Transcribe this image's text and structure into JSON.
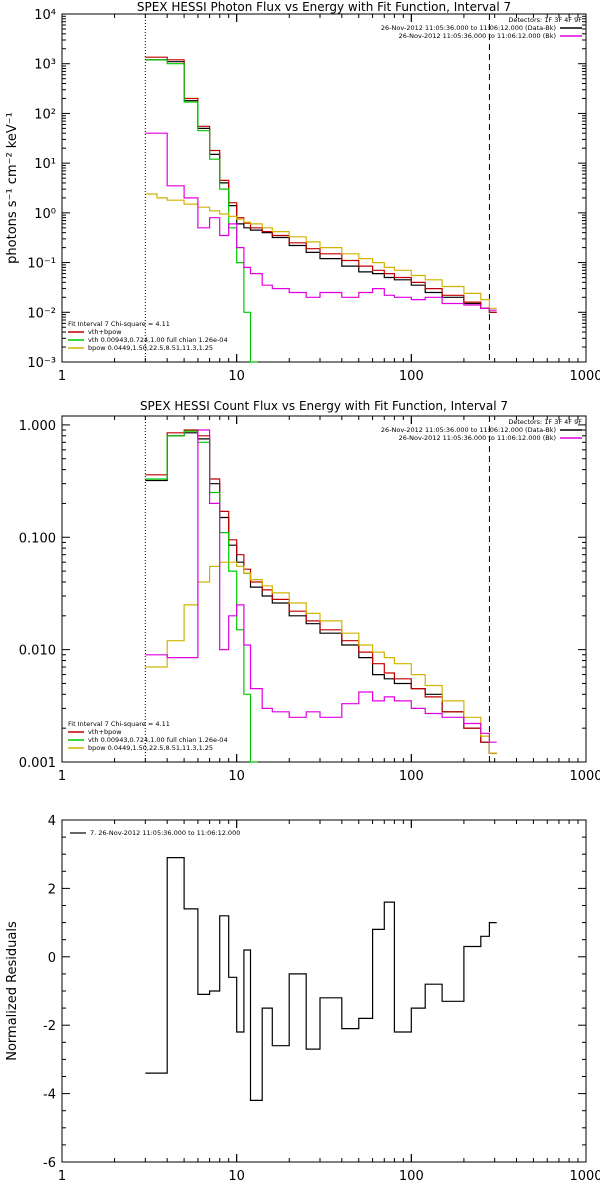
{
  "colors": {
    "data": "#000000",
    "vth": "#00c800",
    "bpow": "#d0b400",
    "total": "#c00000",
    "bkg": "#e000e0"
  },
  "chart_data": [
    {
      "type": "line",
      "title": "SPEX HESSI Photon Flux vs Energy with Fit Function, Interval 7",
      "ylabel": "photons s⁻¹ cm⁻² keV⁻¹",
      "xscale": "log",
      "yscale": "log",
      "xlim": [
        1,
        1000
      ],
      "ylim": [
        0.001,
        10000
      ],
      "xticklabels": [
        "1",
        "10",
        "100",
        "1000"
      ],
      "yticklabels": [
        "10⁻³",
        "10⁻²",
        "10⁻¹",
        "10⁰",
        "10¹",
        "10²",
        "10³",
        "10⁴"
      ],
      "fit_range_keV": [
        3,
        280
      ],
      "detectors_header": "Detectors: 1F 3F 4F 9F",
      "detectors": [
        {
          "text": "26-Nov-2012 11:05:36.000 to 11:06:12.000 (Data-Bk)",
          "color": "#000000"
        },
        {
          "text": "26-Nov-2012 11:05:36.000 to 11:06:12.000 (Bk)",
          "color": "#e000e0"
        }
      ],
      "fit_header": "Fit Interval 7   Chi-square = 4.11",
      "fit_legend": [
        {
          "text": "vth+bpow",
          "color": "#c00000"
        },
        {
          "text": "vth 0.00943,0.724,1.00   full chian 1.26e-04",
          "color": "#00c800"
        },
        {
          "text": "bpow 0.0449,1.50,22.5,8.51,11.3,1.25",
          "color": "#d0b400"
        }
      ],
      "series": [
        {
          "name": "Data-Bk",
          "color": "#000000",
          "x": [
            3,
            3.5,
            4,
            5,
            6,
            7,
            8,
            9,
            10,
            11,
            12,
            14,
            16,
            20,
            25,
            30,
            40,
            50,
            60,
            70,
            80,
            100,
            120,
            150,
            200,
            250,
            280
          ],
          "y": [
            1200,
            1200,
            1100,
            180,
            50,
            15,
            4,
            1.4,
            0.6,
            0.5,
            0.45,
            0.4,
            0.32,
            0.22,
            0.16,
            0.12,
            0.085,
            0.065,
            0.06,
            0.05,
            0.045,
            0.035,
            0.025,
            0.02,
            0.015,
            0.012,
            0.01
          ]
        },
        {
          "name": "vth+bpow",
          "color": "#c00000",
          "x": [
            3,
            3.5,
            4,
            5,
            6,
            7,
            8,
            9,
            10,
            11,
            12,
            14,
            16,
            20,
            25,
            30,
            40,
            50,
            60,
            70,
            80,
            100,
            120,
            150,
            200,
            250,
            280
          ],
          "y": [
            1350,
            1350,
            1200,
            200,
            55,
            18,
            4.5,
            1.6,
            0.8,
            0.62,
            0.5,
            0.42,
            0.35,
            0.25,
            0.19,
            0.15,
            0.11,
            0.085,
            0.07,
            0.06,
            0.05,
            0.04,
            0.03,
            0.022,
            0.016,
            0.012,
            0.01
          ]
        },
        {
          "name": "vth",
          "color": "#00c800",
          "x": [
            3,
            3.5,
            4,
            5,
            6,
            7,
            8,
            9,
            10,
            11,
            12
          ],
          "y": [
            1200,
            1200,
            1000,
            170,
            45,
            12,
            3,
            0.5,
            0.1,
            0.01,
            0.001
          ]
        },
        {
          "name": "bpow",
          "color": "#d0b400",
          "x": [
            3,
            3.5,
            4,
            5,
            6,
            7,
            8,
            9,
            10,
            11,
            12,
            14,
            16,
            20,
            25,
            30,
            40,
            50,
            60,
            70,
            80,
            100,
            120,
            150,
            200,
            250,
            280
          ],
          "y": [
            2.4,
            2.0,
            1.8,
            1.5,
            1.3,
            1.1,
            0.95,
            0.85,
            0.75,
            0.65,
            0.6,
            0.5,
            0.42,
            0.33,
            0.26,
            0.2,
            0.15,
            0.12,
            0.1,
            0.08,
            0.07,
            0.055,
            0.045,
            0.033,
            0.024,
            0.018,
            0.012
          ]
        },
        {
          "name": "Bk",
          "color": "#e000e0",
          "x": [
            3,
            3.5,
            4,
            5,
            6,
            7,
            8,
            9,
            10,
            11,
            12,
            14,
            16,
            20,
            25,
            30,
            40,
            50,
            60,
            70,
            80,
            100,
            120,
            150,
            200,
            250,
            280
          ],
          "y": [
            40,
            40,
            3.5,
            2,
            0.5,
            0.8,
            0.35,
            0.6,
            0.2,
            0.08,
            0.06,
            0.035,
            0.03,
            0.025,
            0.02,
            0.025,
            0.02,
            0.025,
            0.03,
            0.022,
            0.02,
            0.018,
            0.02,
            0.015,
            0.014,
            0.012,
            0.011
          ]
        }
      ]
    },
    {
      "type": "line",
      "title": "SPEX HESSI Count Flux vs Energy with Fit Function, Interval 7",
      "xscale": "log",
      "yscale": "log",
      "xlim": [
        1,
        1000
      ],
      "ylim": [
        0.001,
        1.2
      ],
      "xticklabels": [
        "1",
        "10",
        "100",
        "1000"
      ],
      "yticklabels": [
        "0.001",
        "0.010",
        "0.100",
        "1.000"
      ],
      "fit_range_keV": [
        3,
        280
      ],
      "detectors_header": "Detectors: 1F 3F 4F 9F",
      "detectors": [
        {
          "text": "26-Nov-2012 11:05:36.000 to 11:06:12.000 (Data-Bk)",
          "color": "#000000"
        },
        {
          "text": "26-Nov-2012 11:05:36.000 to 11:06:12.000 (Bk)",
          "color": "#e000e0"
        }
      ],
      "fit_header": "Fit Interval 7   Chi-square = 4.11",
      "fit_legend": [
        {
          "text": "vth+bpow",
          "color": "#c00000"
        },
        {
          "text": "vth 0.00943,0.724,1.00   full chian 1.26e-04",
          "color": "#00c800"
        },
        {
          "text": "bpow 0.0449,1.50,22.5,8.51,11.3,1.25",
          "color": "#d0b400"
        }
      ],
      "series": [
        {
          "name": "Data-Bk",
          "color": "#000000",
          "x": [
            3,
            3.5,
            4,
            5,
            6,
            7,
            8,
            9,
            10,
            11,
            12,
            14,
            16,
            20,
            25,
            30,
            40,
            50,
            60,
            70,
            80,
            100,
            120,
            150,
            200,
            250,
            280
          ],
          "y": [
            0.32,
            0.32,
            0.8,
            0.85,
            0.75,
            0.3,
            0.15,
            0.085,
            0.06,
            0.048,
            0.036,
            0.03,
            0.026,
            0.02,
            0.017,
            0.014,
            0.011,
            0.0085,
            0.006,
            0.0055,
            0.005,
            0.0045,
            0.004,
            0.0028,
            0.002,
            0.0015,
            0.0012
          ]
        },
        {
          "name": "vth+bpow",
          "color": "#c00000",
          "x": [
            3,
            3.5,
            4,
            5,
            6,
            7,
            8,
            9,
            10,
            11,
            12,
            14,
            16,
            20,
            25,
            30,
            40,
            50,
            60,
            70,
            80,
            100,
            120,
            150,
            200,
            250,
            280
          ],
          "y": [
            0.36,
            0.36,
            0.85,
            0.9,
            0.8,
            0.33,
            0.17,
            0.095,
            0.07,
            0.052,
            0.04,
            0.034,
            0.028,
            0.022,
            0.018,
            0.015,
            0.012,
            0.0095,
            0.0075,
            0.0062,
            0.0055,
            0.0045,
            0.0038,
            0.0028,
            0.002,
            0.0015,
            0.0012
          ]
        },
        {
          "name": "vth",
          "color": "#00c800",
          "x": [
            3,
            3.5,
            4,
            5,
            6,
            7,
            8,
            9,
            10,
            11,
            12
          ],
          "y": [
            0.33,
            0.33,
            0.8,
            0.88,
            0.7,
            0.25,
            0.11,
            0.05,
            0.015,
            0.004,
            0.001
          ]
        },
        {
          "name": "bpow",
          "color": "#d0b400",
          "x": [
            3,
            3.5,
            4,
            5,
            6,
            7,
            8,
            9,
            10,
            11,
            12,
            14,
            16,
            20,
            25,
            30,
            40,
            50,
            60,
            70,
            80,
            100,
            120,
            150,
            200,
            250,
            280
          ],
          "y": [
            0.007,
            0.007,
            0.012,
            0.025,
            0.04,
            0.055,
            0.06,
            0.06,
            0.055,
            0.048,
            0.042,
            0.037,
            0.032,
            0.026,
            0.021,
            0.018,
            0.014,
            0.011,
            0.0095,
            0.0085,
            0.0075,
            0.006,
            0.0048,
            0.0035,
            0.0025,
            0.0017,
            0.0012
          ]
        },
        {
          "name": "Bk",
          "color": "#e000e0",
          "x": [
            3,
            3.5,
            4,
            5,
            6,
            7,
            8,
            9,
            10,
            11,
            12,
            14,
            16,
            20,
            25,
            30,
            40,
            50,
            60,
            70,
            80,
            100,
            120,
            150,
            200,
            250,
            280
          ],
          "y": [
            0.009,
            0.009,
            0.0085,
            0.0085,
            0.9,
            0.2,
            0.01,
            0.02,
            0.025,
            0.011,
            0.0045,
            0.003,
            0.0028,
            0.0025,
            0.0028,
            0.0025,
            0.0033,
            0.0042,
            0.0035,
            0.0038,
            0.0035,
            0.003,
            0.0027,
            0.0025,
            0.0022,
            0.0018,
            0.0015
          ]
        }
      ]
    },
    {
      "type": "line",
      "ylabel": "Normalized Residuals",
      "xscale": "log",
      "yscale": "linear",
      "xlim": [
        1,
        1000
      ],
      "ylim": [
        -6,
        4
      ],
      "xticklabels": [
        "1",
        "10",
        "100",
        "1000"
      ],
      "yticklabels": [
        "4",
        "2",
        "0",
        "-2",
        "-4",
        "-6"
      ],
      "legend": [
        {
          "text": "7. 26-Nov-2012 11:05:36.000 to 11:06:12.000",
          "color": "#000000"
        }
      ],
      "series": [
        {
          "name": "7. 26-Nov-2012 11:05:36.000 to 11:06:12.000",
          "color": "#000000",
          "x": [
            3,
            3.5,
            4,
            5,
            6,
            7,
            8,
            9,
            10,
            11,
            12,
            14,
            16,
            20,
            25,
            30,
            40,
            50,
            60,
            70,
            80,
            100,
            120,
            150,
            200,
            250,
            280
          ],
          "y": [
            -3.4,
            -3.4,
            2.9,
            1.4,
            -1.1,
            -1.0,
            1.2,
            -0.6,
            -2.2,
            0.2,
            -4.2,
            -1.5,
            -2.6,
            -0.5,
            -2.7,
            -1.2,
            -2.1,
            -1.8,
            0.8,
            1.6,
            -2.2,
            -1.5,
            -0.8,
            -1.3,
            0.3,
            0.6,
            1.0
          ]
        }
      ]
    }
  ]
}
